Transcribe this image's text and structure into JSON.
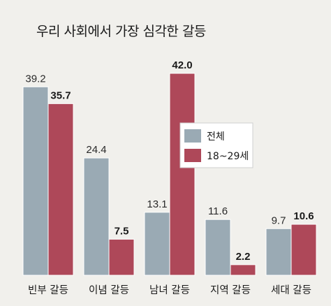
{
  "title": "우리 사회에서 가장 심각한 갈등",
  "chart_data": {
    "type": "bar",
    "title": "우리 사회에서 가장 심각한 갈등",
    "categories": [
      "빈부 갈등",
      "이념 갈등",
      "남녀 갈등",
      "지역 갈등",
      "세대 갈등"
    ],
    "series": [
      {
        "name": "전체",
        "values": [
          39.2,
          24.4,
          13.1,
          11.6,
          9.7
        ],
        "labels": [
          "39.2",
          "24.4",
          "13.1",
          "11.6",
          "9.7"
        ],
        "color": "#9aaab4"
      },
      {
        "name": "18~29세",
        "values": [
          35.7,
          7.5,
          42.0,
          2.2,
          10.6
        ],
        "labels": [
          "35.7",
          "7.5",
          "42.0",
          "2.2",
          "10.6"
        ],
        "color": "#ae4859"
      }
    ],
    "ylim": [
      0,
      42
    ],
    "grid": false,
    "legend": "center-right"
  }
}
